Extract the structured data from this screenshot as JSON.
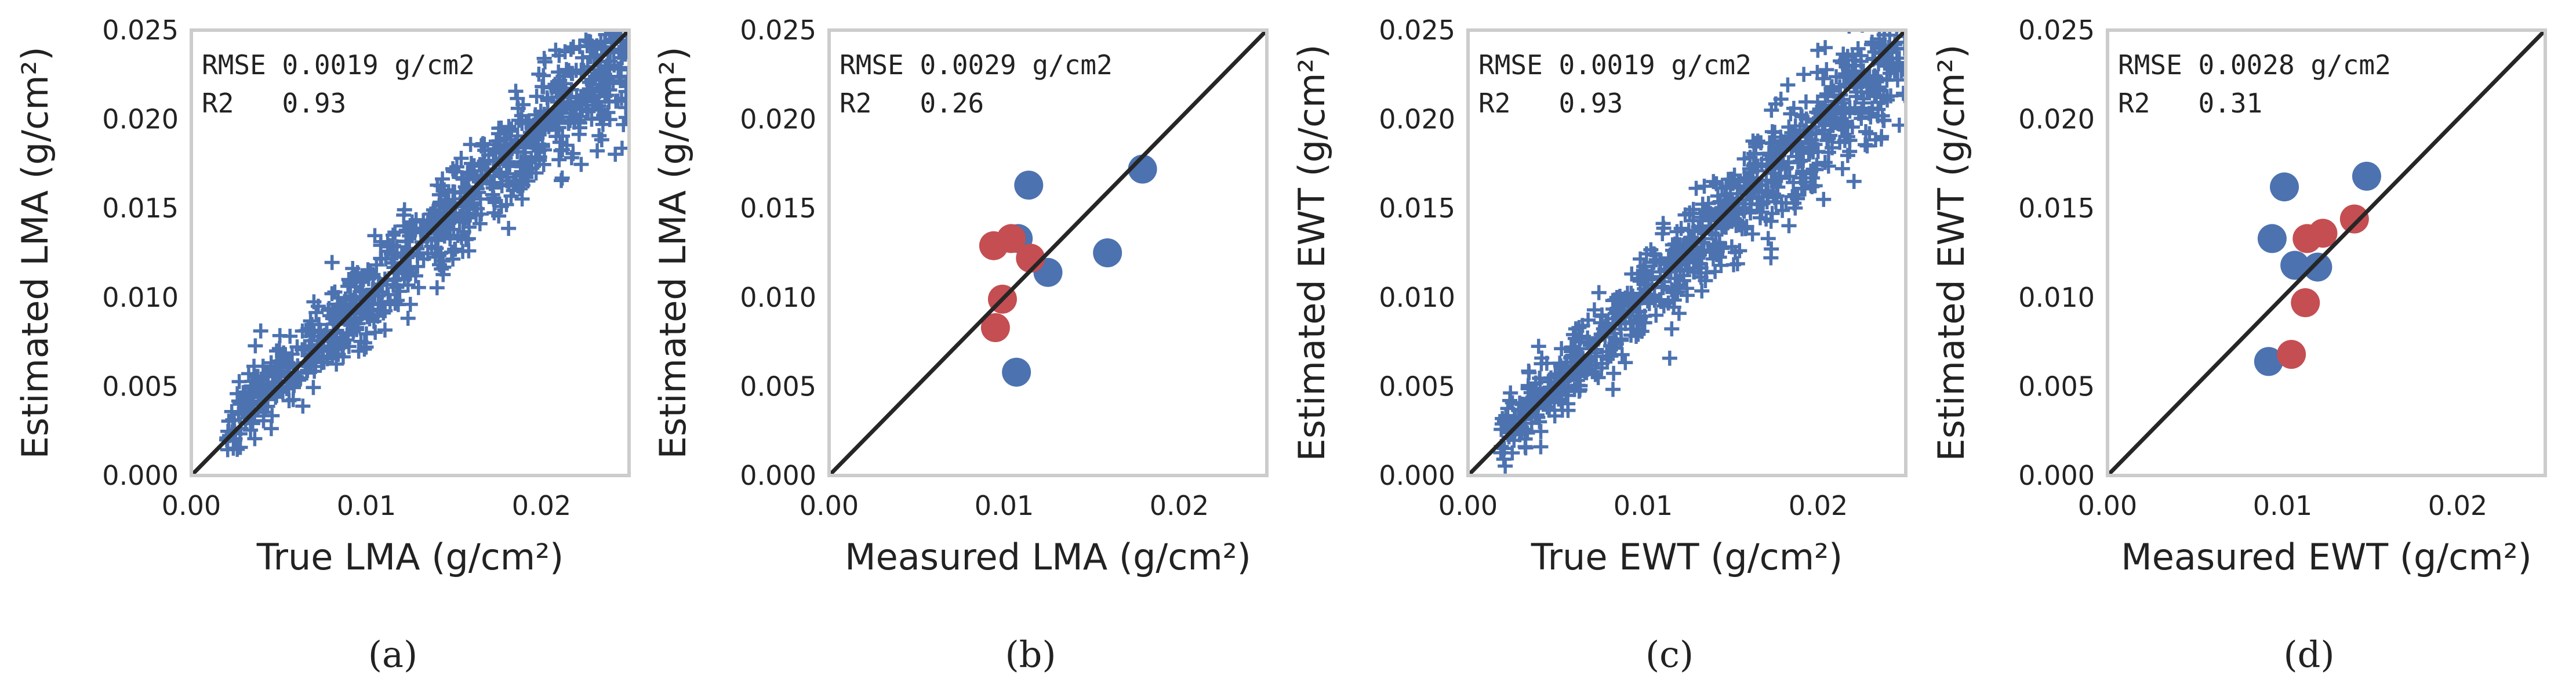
{
  "chart_data": [
    {
      "id": "a",
      "type": "scatter",
      "caption": "(a)",
      "xlabel": "True LMA (g/cm²)",
      "ylabel": "Estimated LMA (g/cm²)",
      "xlim": [
        0,
        0.025
      ],
      "ylim": [
        0,
        0.025
      ],
      "xticks": [
        "0.00",
        "0.01",
        "0.02"
      ],
      "yticks": [
        "0.000",
        "0.005",
        "0.010",
        "0.015",
        "0.020",
        "0.025"
      ],
      "annotation": [
        "RMSE 0.0019 g/cm2",
        "R2   0.93"
      ],
      "identity_line": true,
      "marker": "plus",
      "colors": {
        "points": "#4c72b0"
      },
      "dense_cloud": {
        "n": 900,
        "seed": 11,
        "x_min": 0.002,
        "x_max": 0.025,
        "slope": 0.93,
        "intercept": 0.0008,
        "noise": 0.0019
      }
    },
    {
      "id": "b",
      "type": "scatter",
      "caption": "(b)",
      "xlabel": "Measured LMA (g/cm²)",
      "ylabel": "Estimated LMA (g/cm²)",
      "xlim": [
        0,
        0.025
      ],
      "ylim": [
        0,
        0.025
      ],
      "xticks": [
        "0.00",
        "0.01",
        "0.02"
      ],
      "yticks": [
        "0.000",
        "0.005",
        "0.010",
        "0.015",
        "0.020",
        "0.025"
      ],
      "annotation": [
        "RMSE 0.0029 g/cm2",
        "R2   0.26"
      ],
      "identity_line": true,
      "marker": "circle",
      "colors": {
        "blue": "#4c72b0",
        "red": "#c44e52"
      },
      "series": [
        {
          "name": "blue",
          "color": "blue",
          "x": [
            0.0179,
            0.0114,
            0.0108,
            0.0125,
            0.0159,
            0.0107
          ],
          "y": [
            0.0172,
            0.0163,
            0.0133,
            0.0114,
            0.0125,
            0.0058
          ]
        },
        {
          "name": "red",
          "color": "red",
          "x": [
            0.0094,
            0.0104,
            0.0115,
            0.0099,
            0.0095
          ],
          "y": [
            0.0129,
            0.0133,
            0.0122,
            0.0099,
            0.0083
          ]
        }
      ]
    },
    {
      "id": "c",
      "type": "scatter",
      "caption": "(c)",
      "xlabel": "True EWT (g/cm²)",
      "ylabel": "Estimated EWT (g/cm²)",
      "xlim": [
        0,
        0.025
      ],
      "ylim": [
        0,
        0.025
      ],
      "xticks": [
        "0.00",
        "0.01",
        "0.02"
      ],
      "yticks": [
        "0.000",
        "0.005",
        "0.010",
        "0.015",
        "0.020",
        "0.025"
      ],
      "annotation": [
        "RMSE 0.0019 g/cm2",
        "R2   0.93"
      ],
      "identity_line": true,
      "marker": "plus",
      "colors": {
        "points": "#4c72b0"
      },
      "dense_cloud": {
        "n": 900,
        "seed": 23,
        "x_min": 0.0018,
        "x_max": 0.025,
        "slope": 0.95,
        "intercept": 0.0005,
        "noise": 0.0019
      }
    },
    {
      "id": "d",
      "type": "scatter",
      "caption": "(d)",
      "xlabel": "Measured EWT (g/cm²)",
      "ylabel": "Estimated EWT (g/cm²)",
      "xlim": [
        0,
        0.025
      ],
      "ylim": [
        0,
        0.025
      ],
      "xticks": [
        "0.00",
        "0.01",
        "0.02"
      ],
      "yticks": [
        "0.000",
        "0.005",
        "0.010",
        "0.015",
        "0.020",
        "0.025"
      ],
      "annotation": [
        "RMSE 0.0028 g/cm2",
        "R2   0.31"
      ],
      "identity_line": true,
      "marker": "circle",
      "colors": {
        "blue": "#4c72b0",
        "red": "#c44e52"
      },
      "series": [
        {
          "name": "blue",
          "color": "blue",
          "x": [
            0.0101,
            0.0148,
            0.0094,
            0.0107,
            0.012,
            0.0092
          ],
          "y": [
            0.0162,
            0.0168,
            0.0133,
            0.0118,
            0.0117,
            0.0064
          ]
        },
        {
          "name": "red",
          "color": "red",
          "x": [
            0.0114,
            0.0123,
            0.0141,
            0.0113,
            0.0105
          ],
          "y": [
            0.0133,
            0.0136,
            0.0144,
            0.0097,
            0.0068
          ]
        }
      ]
    }
  ]
}
